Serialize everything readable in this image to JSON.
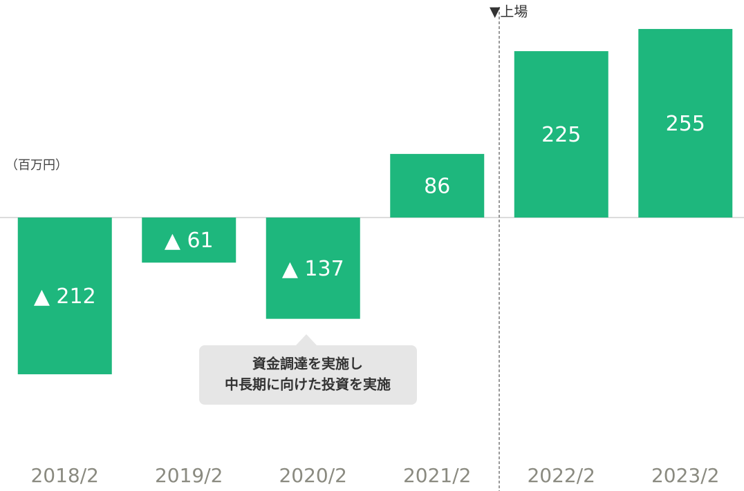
{
  "chart_data": {
    "type": "bar",
    "categories": [
      "2018/2",
      "2019/2",
      "2020/2",
      "2021/2",
      "2022/2",
      "2023/2"
    ],
    "values": [
      -212,
      -61,
      -137,
      86,
      225,
      255
    ],
    "value_labels": [
      "▲ 212",
      "▲ 61",
      "▲ 137",
      "86",
      "225",
      "255"
    ],
    "color": "#1eb77d",
    "ylim": [
      -300,
      260
    ],
    "unit_label": "（百万円）",
    "listing_label": "▼上場",
    "note": [
      "資金調達を実施し",
      "中長期に向けた投資を実施"
    ]
  }
}
